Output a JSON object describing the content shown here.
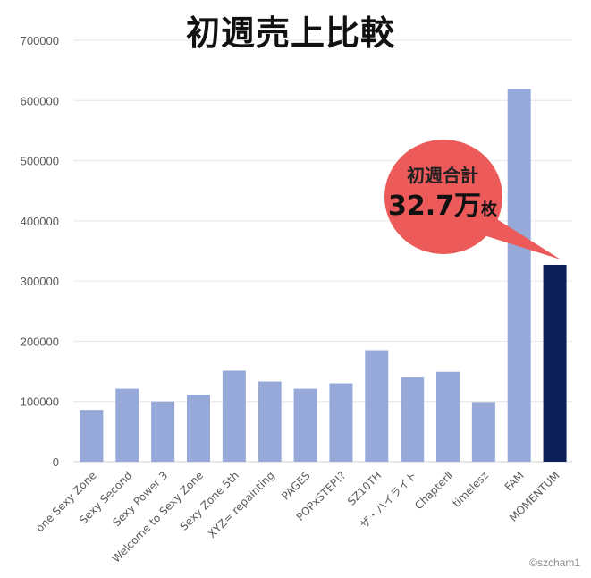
{
  "title": "初週売上比較",
  "callout": {
    "line1": "初週合計",
    "value": "32.7万",
    "unit": "枚"
  },
  "credit": "©szcham1",
  "colors": {
    "bar": "#96a9d9",
    "highlight": "#0d1f57",
    "bubble": "#ec5a5a",
    "grid": "#e6e6e6",
    "tick_text": "#595959"
  },
  "chart_data": {
    "type": "bar",
    "categories": [
      "one Sexy Zone",
      "Sexy Second",
      "Sexy Power 3",
      "Welcome to Sexy Zone",
      "Sexy Zone 5th",
      "XYZ= repainting",
      "PAGES",
      "POPxSTEP!?",
      "SZ10TH",
      "ザ・ハイライト",
      "ChapterⅡ",
      "timelesz",
      "FAM",
      "MOMENTUM"
    ],
    "values": [
      86000,
      121000,
      100000,
      111000,
      151000,
      133000,
      121000,
      130000,
      185000,
      141000,
      149000,
      99000,
      619000,
      327000
    ],
    "highlight_index": 13,
    "ylim": [
      0,
      700000
    ],
    "yticks": [
      0,
      100000,
      200000,
      300000,
      400000,
      500000,
      600000,
      700000
    ],
    "ytick_labels": [
      "0",
      "100000",
      "200000",
      "300000",
      "400000",
      "500000",
      "600000",
      "700000"
    ],
    "grid": true
  }
}
